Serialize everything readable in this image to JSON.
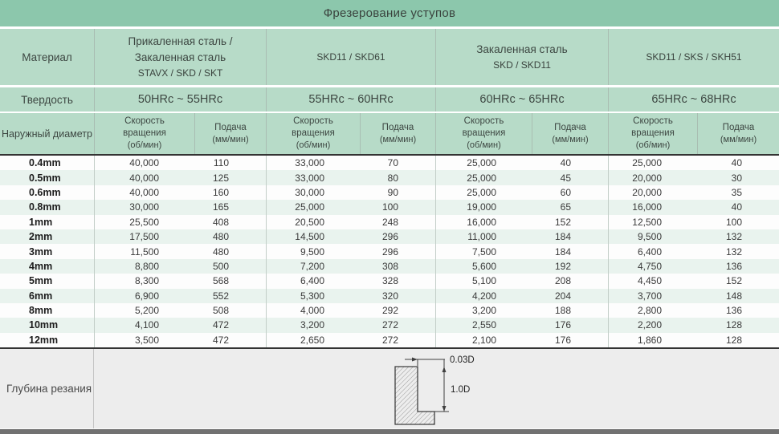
{
  "title": "Фрезерование уступов",
  "labels": {
    "material": "Материал",
    "hardness": "Твердость",
    "diameter": "Наружный диаметр",
    "speed": "Скорость вращения",
    "speed_unit": "(об/мин)",
    "feed": "Подача",
    "feed_unit": "(мм/мин)",
    "depth": "Глубина резания"
  },
  "groups": [
    {
      "material_lines": [
        "Прикаленная сталь /",
        "Закаленная сталь"
      ],
      "codes": "STAVX / SKD / SKT",
      "hardness": "50HRc ~ 55HRc"
    },
    {
      "material_lines": [],
      "codes": "SKD11 / SKD61",
      "hardness": "55HRc ~ 60HRc"
    },
    {
      "material_lines": [
        "Закаленная сталь"
      ],
      "codes": "SKD / SKD11",
      "hardness": "60HRc ~ 65HRc"
    },
    {
      "material_lines": [],
      "codes": "SKD11 / SKS / SKH51",
      "hardness": "65HRc ~ 68HRc"
    }
  ],
  "rows": [
    {
      "diameter": "0.4mm",
      "values": [
        "40,000",
        "110",
        "33,000",
        "70",
        "25,000",
        "40",
        "25,000",
        "40"
      ]
    },
    {
      "diameter": "0.5mm",
      "values": [
        "40,000",
        "125",
        "33,000",
        "80",
        "25,000",
        "45",
        "20,000",
        "30"
      ]
    },
    {
      "diameter": "0.6mm",
      "values": [
        "40,000",
        "160",
        "30,000",
        "90",
        "25,000",
        "60",
        "20,000",
        "35"
      ]
    },
    {
      "diameter": "0.8mm",
      "values": [
        "30,000",
        "165",
        "25,000",
        "100",
        "19,000",
        "65",
        "16,000",
        "40"
      ]
    },
    {
      "diameter": "1mm",
      "values": [
        "25,500",
        "408",
        "20,500",
        "248",
        "16,000",
        "152",
        "12,500",
        "100"
      ]
    },
    {
      "diameter": "2mm",
      "values": [
        "17,500",
        "480",
        "14,500",
        "296",
        "11,000",
        "184",
        "9,500",
        "132"
      ]
    },
    {
      "diameter": "3mm",
      "values": [
        "11,500",
        "480",
        "9,500",
        "296",
        "7,500",
        "184",
        "6,400",
        "132"
      ]
    },
    {
      "diameter": "4mm",
      "values": [
        "8,800",
        "500",
        "7,200",
        "308",
        "5,600",
        "192",
        "4,750",
        "136"
      ]
    },
    {
      "diameter": "5mm",
      "values": [
        "8,300",
        "568",
        "6,400",
        "328",
        "5,100",
        "208",
        "4,450",
        "152"
      ]
    },
    {
      "diameter": "6mm",
      "values": [
        "6,900",
        "552",
        "5,300",
        "320",
        "4,200",
        "204",
        "3,700",
        "148"
      ]
    },
    {
      "diameter": "8mm",
      "values": [
        "5,200",
        "508",
        "4,000",
        "292",
        "3,200",
        "188",
        "2,800",
        "136"
      ]
    },
    {
      "diameter": "10mm",
      "values": [
        "4,100",
        "472",
        "3,200",
        "272",
        "2,550",
        "176",
        "2,200",
        "128"
      ]
    },
    {
      "diameter": "12mm",
      "values": [
        "3,500",
        "472",
        "2,650",
        "272",
        "2,100",
        "176",
        "1,860",
        "128"
      ]
    }
  ],
  "diagram": {
    "top_dim": "0.03D",
    "side_dim": "1.0D"
  },
  "colors": {
    "title_green": "#8cc7ac",
    "header_green": "#b7dbc8",
    "stripe_green": "#e9f3ee",
    "footer_gray": "#ededed",
    "bottom_bar": "#717171",
    "dark_separator": "#333333"
  }
}
